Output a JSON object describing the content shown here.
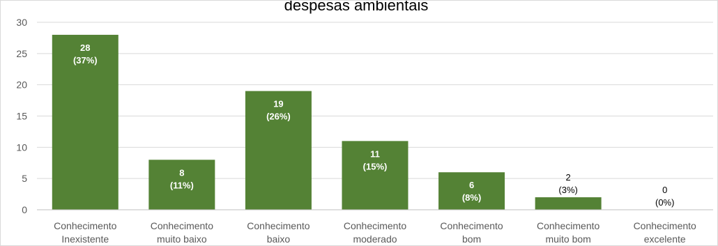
{
  "chart_data": {
    "type": "bar",
    "title": "despesas ambientais",
    "categories": [
      [
        "Conhecimento",
        "Inexistente"
      ],
      [
        "Conhecimento",
        "muito baixo"
      ],
      [
        "Conhecimento",
        "baixo"
      ],
      [
        "Conhecimento",
        "moderado"
      ],
      [
        "Conhecimento",
        "bom"
      ],
      [
        "Conhecimento",
        "muito bom"
      ],
      [
        "Conhecimento",
        "excelente"
      ]
    ],
    "values": [
      28,
      8,
      19,
      11,
      6,
      2,
      0
    ],
    "percent_labels": [
      "(37%)",
      "(11%)",
      "(26%)",
      "(15%)",
      "(8%)",
      "(3%)",
      "(0%)"
    ],
    "ylim": [
      0,
      30
    ],
    "yticks": [
      0,
      5,
      10,
      15,
      20,
      25,
      30
    ],
    "grid": true,
    "legend": "none",
    "colors": {
      "bar": "#548235",
      "grid": "#d9d9d9",
      "label_inside": "#ffffff",
      "label_outside": "#000000"
    }
  }
}
